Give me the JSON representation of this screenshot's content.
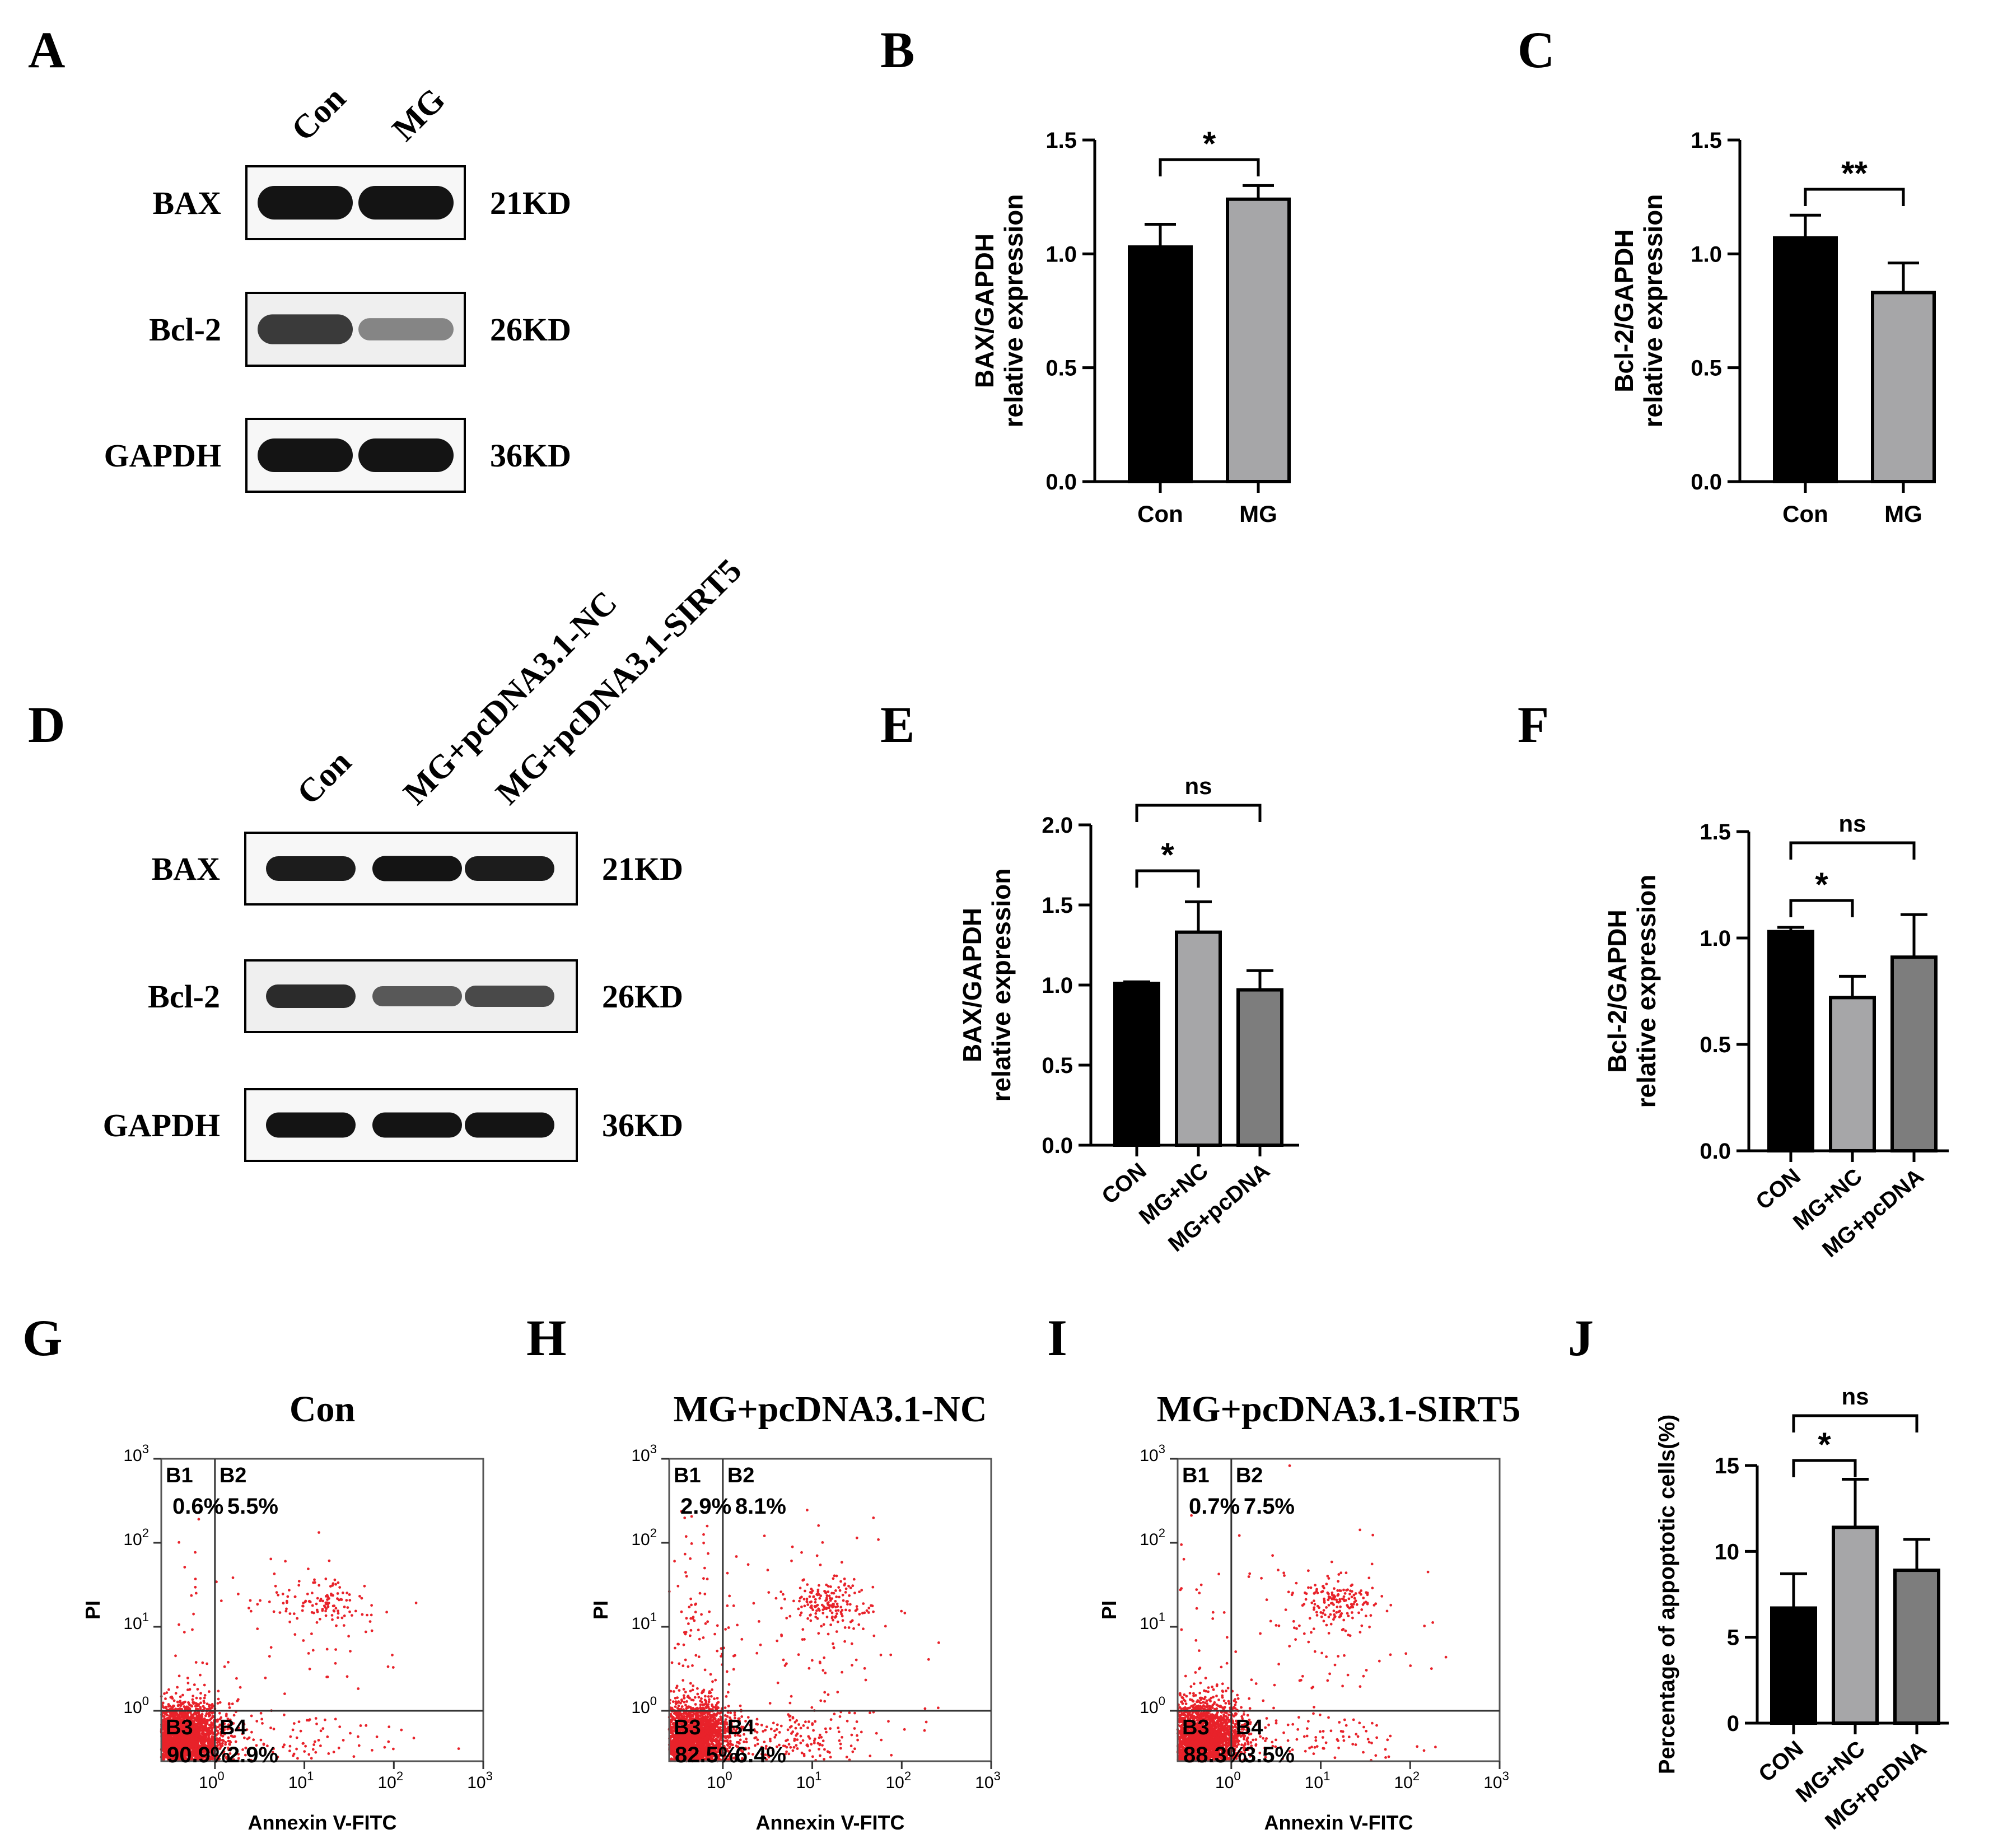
{
  "panel_letters": [
    "A",
    "B",
    "C",
    "D",
    "E",
    "F",
    "G",
    "H",
    "I",
    "J"
  ],
  "western_A": {
    "lanes": [
      "Con",
      "MG"
    ],
    "rows": [
      {
        "label": "BAX",
        "kd": "21KD",
        "intensity": [
          1.0,
          1.0
        ]
      },
      {
        "label": "Bcl-2",
        "kd": "26KD",
        "intensity": [
          0.75,
          0.25
        ]
      },
      {
        "label": "GAPDH",
        "kd": "36KD",
        "intensity": [
          1.0,
          1.0
        ]
      }
    ]
  },
  "western_D": {
    "lanes": [
      "Con",
      "MG+pcDNA3.1-NC",
      "MG+pcDNA3.1-SIRT5"
    ],
    "rows": [
      {
        "label": "BAX",
        "kd": "21KD",
        "intensity": [
          0.95,
          1.0,
          0.95
        ]
      },
      {
        "label": "Bcl-2",
        "kd": "26KD",
        "intensity": [
          0.85,
          0.55,
          0.65
        ]
      },
      {
        "label": "GAPDH",
        "kd": "36KD",
        "intensity": [
          1.0,
          1.0,
          1.0
        ]
      }
    ]
  },
  "chart_data": [
    {
      "id": "B",
      "type": "bar",
      "categories": [
        "Con",
        "MG"
      ],
      "values": [
        1.03,
        1.24
      ],
      "errors": [
        0.1,
        0.06
      ],
      "colors": [
        "#000000",
        "#a6a6a8"
      ],
      "ylabel": [
        "BAX/GAPDH",
        "relative expression"
      ],
      "ylim": [
        0,
        1.5
      ],
      "yticks": [
        "0.0",
        "0.5",
        "1.0",
        "1.5"
      ],
      "yticks_values": [
        0,
        0.5,
        1.0,
        1.5
      ],
      "xlabel_rotated": false,
      "significance": [
        {
          "from": 0,
          "to": 1,
          "label": "*"
        }
      ]
    },
    {
      "id": "C",
      "type": "bar",
      "categories": [
        "Con",
        "MG"
      ],
      "values": [
        1.07,
        0.83
      ],
      "errors": [
        0.1,
        0.13
      ],
      "colors": [
        "#000000",
        "#a6a6a8"
      ],
      "ylabel": [
        "Bcl-2/GAPDH",
        "relative expression"
      ],
      "ylim": [
        0,
        1.5
      ],
      "yticks": [
        "0.0",
        "0.5",
        "1.0",
        "1.5"
      ],
      "yticks_values": [
        0,
        0.5,
        1.0,
        1.5
      ],
      "xlabel_rotated": false,
      "significance": [
        {
          "from": 0,
          "to": 1,
          "label": "**"
        }
      ]
    },
    {
      "id": "E",
      "type": "bar",
      "categories": [
        "CON",
        "MG+NC",
        "MG+pcDNA"
      ],
      "values": [
        1.01,
        1.33,
        0.97
      ],
      "errors": [
        0.01,
        0.19,
        0.12
      ],
      "colors": [
        "#000000",
        "#a6a6a8",
        "#7d7d7d"
      ],
      "ylabel": [
        "BAX/GAPDH",
        "relative expression"
      ],
      "ylim": [
        0,
        2.0
      ],
      "yticks": [
        "0.0",
        "0.5",
        "1.0",
        "1.5",
        "2.0"
      ],
      "yticks_values": [
        0,
        0.5,
        1.0,
        1.5,
        2.0
      ],
      "xlabel_rotated": true,
      "significance": [
        {
          "from": 0,
          "to": 1,
          "label": "*"
        },
        {
          "from": 0,
          "to": 2,
          "label": "ns"
        }
      ]
    },
    {
      "id": "F",
      "type": "bar",
      "categories": [
        "CON",
        "MG+NC",
        "MG+pcDNA"
      ],
      "values": [
        1.03,
        0.72,
        0.91
      ],
      "errors": [
        0.02,
        0.1,
        0.2
      ],
      "colors": [
        "#000000",
        "#a6a6a8",
        "#7d7d7d"
      ],
      "ylabel": [
        "Bcl-2/GAPDH",
        "relative expression"
      ],
      "ylim": [
        0,
        1.5
      ],
      "yticks": [
        "0.0",
        "0.5",
        "1.0",
        "1.5"
      ],
      "yticks_values": [
        0,
        0.5,
        1.0,
        1.5
      ],
      "xlabel_rotated": true,
      "significance": [
        {
          "from": 0,
          "to": 1,
          "label": "*"
        },
        {
          "from": 0,
          "to": 2,
          "label": "ns"
        }
      ]
    },
    {
      "id": "J",
      "type": "bar",
      "categories": [
        "CON",
        "MG+NC",
        "MG+pcDNA"
      ],
      "values": [
        6.7,
        11.4,
        8.9
      ],
      "errors": [
        2.0,
        2.8,
        1.8
      ],
      "colors": [
        "#000000",
        "#a6a6a8",
        "#7d7d7d"
      ],
      "ylabel": [
        "Percentage of appoptotic cells(%)"
      ],
      "ylim": [
        0,
        15
      ],
      "yticks": [
        "0",
        "5",
        "10",
        "15"
      ],
      "yticks_values": [
        0,
        5,
        10,
        15
      ],
      "xlabel_rotated": true,
      "significance": [
        {
          "from": 0,
          "to": 1,
          "label": "*"
        },
        {
          "from": 0,
          "to": 2,
          "label": "ns"
        }
      ]
    },
    {
      "id": "G",
      "type": "scatter",
      "title": "Con",
      "quadrants": [
        "B1",
        "B2",
        "B3",
        "B4"
      ],
      "percentages": {
        "B1": "0.6%",
        "B2": "5.5%",
        "B3": "90.9%",
        "B4": "2.9%"
      },
      "xlabel": "Annexin V-FITC",
      "ylabel": "PI",
      "xlim_log10": [
        -0.6,
        3
      ],
      "ylim_log10": [
        -0.6,
        3
      ],
      "gate_log10": [
        0,
        0
      ],
      "ticks": [
        "10",
        "0",
        "1",
        "2",
        "3"
      ]
    },
    {
      "id": "H",
      "type": "scatter",
      "title": "MG+pcDNA3.1-NC",
      "quadrants": [
        "B1",
        "B2",
        "B3",
        "B4"
      ],
      "percentages": {
        "B1": "2.9%",
        "B2": "8.1%",
        "B3": "82.5%",
        "B4": "6.4%"
      },
      "xlabel": "Annexin V-FITC",
      "ylabel": "PI",
      "xlim_log10": [
        -0.6,
        3
      ],
      "ylim_log10": [
        -0.6,
        3
      ],
      "gate_log10": [
        0,
        0
      ],
      "ticks": [
        "10",
        "0",
        "1",
        "2",
        "3"
      ]
    },
    {
      "id": "I",
      "type": "scatter",
      "title": "MG+pcDNA3.1-SIRT5",
      "quadrants": [
        "B1",
        "B2",
        "B3",
        "B4"
      ],
      "percentages": {
        "B1": "0.7%",
        "B2": "7.5%",
        "B3": "88.3%",
        "B4": "3.5%"
      },
      "xlabel": "Annexin V-FITC",
      "ylabel": "PI",
      "xlim_log10": [
        -0.6,
        3
      ],
      "ylim_log10": [
        -0.6,
        3
      ],
      "gate_log10": [
        0,
        0
      ],
      "ticks": [
        "10",
        "0",
        "1",
        "2",
        "3"
      ]
    }
  ]
}
